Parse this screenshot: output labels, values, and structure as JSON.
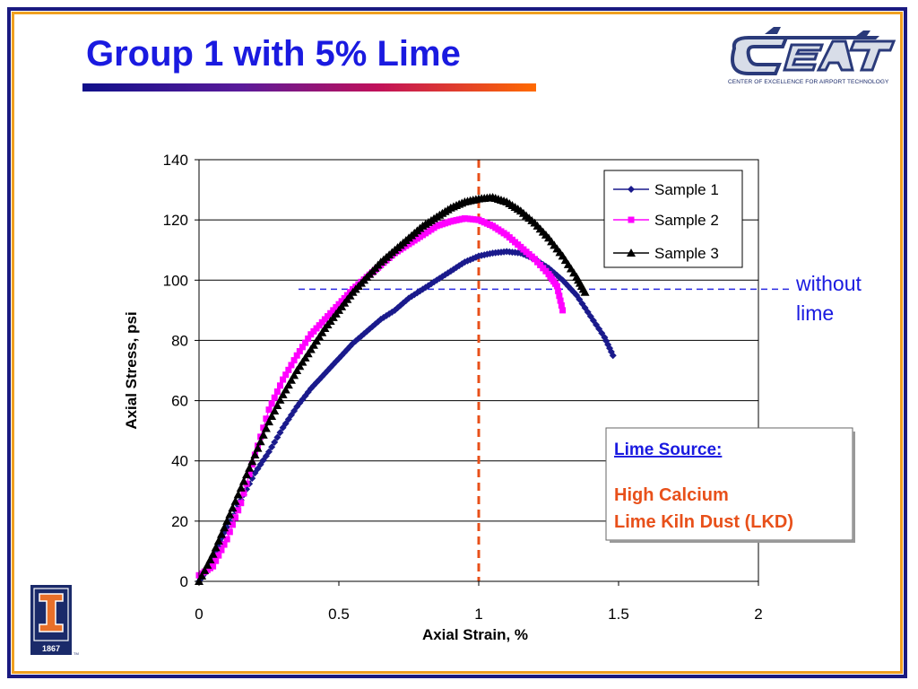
{
  "slide": {
    "title": "Group 1 with 5% Lime",
    "logo_text": "CEAT",
    "logo_caption": "CENTER OF EXCELLENCE FOR AIRPORT TECHNOLOGY",
    "university_logo_year": "1867",
    "university_logo_mark": "TM"
  },
  "annotation": {
    "without_lime_line1": "without",
    "without_lime_line2": "lime",
    "without_lime_value": 97
  },
  "lime_box": {
    "heading": "Lime Source:",
    "line1": "High Calcium",
    "line2": "Lime Kiln Dust (LKD)"
  },
  "colors": {
    "sample1": "#1a1a8c",
    "sample2": "#ff00ff",
    "sample3": "#000000",
    "vertical_ref": "#e8501a",
    "horizontal_ref": "#2a2ae0",
    "title": "#1a1ae0",
    "annotation_text": "#1a1ae0",
    "lime_heading": "#1a1ae0",
    "lime_text": "#e8501a"
  },
  "chart_data": {
    "type": "scatter",
    "xlabel": "Axial Strain, %",
    "ylabel": "Axial Stress, psi",
    "xlim": [
      0,
      2
    ],
    "ylim": [
      0,
      140
    ],
    "xticks": [
      "0",
      "0.5",
      "1",
      "1.5",
      "2"
    ],
    "yticks": [
      "0",
      "20",
      "40",
      "60",
      "80",
      "100",
      "120",
      "140"
    ],
    "grid": "horizontal",
    "legend_position": "top-right",
    "vertical_reference_x": 1.0,
    "series": [
      {
        "name": "Sample 1",
        "marker": "diamond",
        "points": [
          [
            0.0,
            0
          ],
          [
            0.03,
            4
          ],
          [
            0.06,
            10
          ],
          [
            0.1,
            18
          ],
          [
            0.15,
            27
          ],
          [
            0.2,
            36
          ],
          [
            0.25,
            43
          ],
          [
            0.3,
            51
          ],
          [
            0.35,
            58
          ],
          [
            0.4,
            64
          ],
          [
            0.45,
            69
          ],
          [
            0.5,
            74
          ],
          [
            0.55,
            79
          ],
          [
            0.6,
            83
          ],
          [
            0.65,
            87
          ],
          [
            0.7,
            90
          ],
          [
            0.75,
            94
          ],
          [
            0.8,
            97
          ],
          [
            0.85,
            100
          ],
          [
            0.9,
            103
          ],
          [
            0.95,
            106
          ],
          [
            1.0,
            108
          ],
          [
            1.05,
            109
          ],
          [
            1.1,
            109.5
          ],
          [
            1.15,
            109
          ],
          [
            1.2,
            107
          ],
          [
            1.25,
            104
          ],
          [
            1.3,
            100
          ],
          [
            1.35,
            95
          ],
          [
            1.4,
            88
          ],
          [
            1.45,
            81
          ],
          [
            1.48,
            75
          ]
        ]
      },
      {
        "name": "Sample 2",
        "marker": "square",
        "points": [
          [
            0.0,
            2
          ],
          [
            0.05,
            5
          ],
          [
            0.1,
            14
          ],
          [
            0.15,
            26
          ],
          [
            0.2,
            42
          ],
          [
            0.25,
            57
          ],
          [
            0.3,
            67
          ],
          [
            0.35,
            75
          ],
          [
            0.4,
            82
          ],
          [
            0.45,
            87
          ],
          [
            0.5,
            92
          ],
          [
            0.55,
            97
          ],
          [
            0.6,
            101
          ],
          [
            0.65,
            105
          ],
          [
            0.7,
            109
          ],
          [
            0.75,
            112
          ],
          [
            0.8,
            115
          ],
          [
            0.85,
            118
          ],
          [
            0.9,
            119.5
          ],
          [
            0.95,
            120.5
          ],
          [
            1.0,
            120
          ],
          [
            1.05,
            118
          ],
          [
            1.1,
            115
          ],
          [
            1.15,
            111
          ],
          [
            1.2,
            107
          ],
          [
            1.25,
            102
          ],
          [
            1.28,
            98
          ],
          [
            1.3,
            90
          ]
        ]
      },
      {
        "name": "Sample 3",
        "marker": "triangle",
        "points": [
          [
            0.0,
            0
          ],
          [
            0.05,
            9
          ],
          [
            0.1,
            20
          ],
          [
            0.15,
            31
          ],
          [
            0.2,
            42
          ],
          [
            0.25,
            53
          ],
          [
            0.3,
            62
          ],
          [
            0.35,
            70
          ],
          [
            0.4,
            77
          ],
          [
            0.45,
            84
          ],
          [
            0.5,
            90
          ],
          [
            0.55,
            96
          ],
          [
            0.6,
            101
          ],
          [
            0.65,
            106
          ],
          [
            0.7,
            110
          ],
          [
            0.75,
            114
          ],
          [
            0.8,
            118
          ],
          [
            0.85,
            121
          ],
          [
            0.9,
            124
          ],
          [
            0.95,
            126
          ],
          [
            1.0,
            127
          ],
          [
            1.05,
            127.5
          ],
          [
            1.1,
            126
          ],
          [
            1.15,
            123
          ],
          [
            1.2,
            119
          ],
          [
            1.25,
            114
          ],
          [
            1.3,
            108
          ],
          [
            1.35,
            101
          ],
          [
            1.38,
            96
          ]
        ]
      }
    ]
  }
}
